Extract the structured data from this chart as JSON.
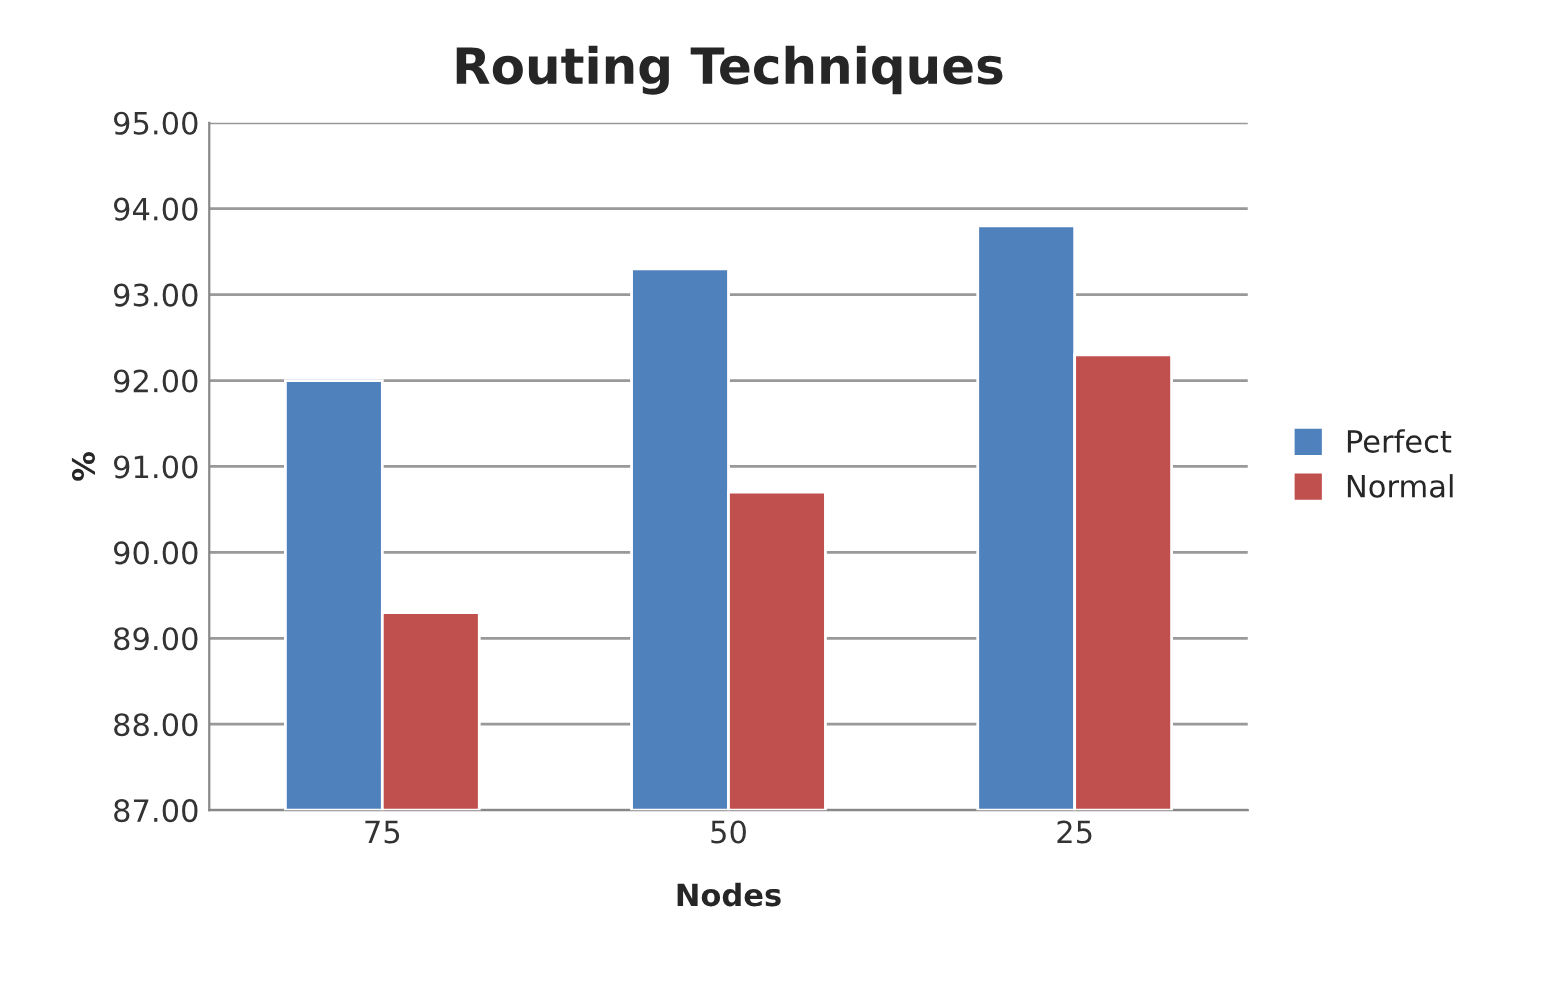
{
  "chart_data": {
    "type": "bar",
    "title": "Routing Techniques",
    "xlabel": "Nodes",
    "ylabel": "%",
    "categories": [
      "75",
      "50",
      "25"
    ],
    "series": [
      {
        "name": "Perfect",
        "color": "#4f81bd",
        "values": [
          92.0,
          93.3,
          93.8
        ]
      },
      {
        "name": "Normal",
        "color": "#c0504d",
        "values": [
          89.3,
          90.7,
          92.3
        ]
      }
    ],
    "ylim": [
      87,
      95
    ],
    "yticks": [
      {
        "value": 87,
        "label": "87.00"
      },
      {
        "value": 88,
        "label": "88.00"
      },
      {
        "value": 89,
        "label": "89.00"
      },
      {
        "value": 90,
        "label": "90.00"
      },
      {
        "value": 91,
        "label": "91.00"
      },
      {
        "value": 92,
        "label": "92.00"
      },
      {
        "value": 93,
        "label": "93.00"
      },
      {
        "value": 94,
        "label": "94.00"
      },
      {
        "value": 95,
        "label": "95.00"
      }
    ],
    "grid": "y",
    "legend": "right"
  }
}
